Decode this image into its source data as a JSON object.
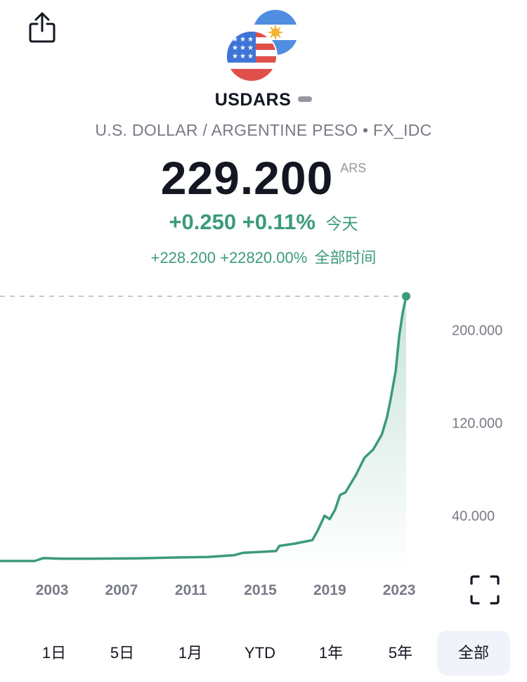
{
  "header": {
    "share_icon": "share-icon",
    "flags_icon": "usd-ars-flags-icon"
  },
  "symbol": {
    "ticker": "USDARS",
    "description": "U.S. DOLLAR / ARGENTINE PESO • FX_IDC",
    "price": "229.200",
    "currency": "ARS",
    "change_today": "+0.250",
    "change_today_pct": "+0.11%",
    "change_today_label": "今天",
    "change_all": "+228.200",
    "change_all_pct": "+22820.00%",
    "change_all_label": "全部时间"
  },
  "colors": {
    "line": "#3b9a7e",
    "positive": "#3b9a7e",
    "text": "#131722",
    "muted": "#787b86",
    "active_range_bg": "#f0f3fa"
  },
  "ranges": [
    "1日",
    "5日",
    "1月",
    "YTD",
    "1年",
    "5年",
    "全部"
  ],
  "active_range": "全部",
  "expand_icon": "expand-fullscreen-icon",
  "chart_data": {
    "type": "area",
    "title": "",
    "xlabel": "",
    "ylabel": "",
    "x_tick_labels": [
      "2003",
      "2007",
      "2011",
      "2015",
      "2019",
      "2023"
    ],
    "y_tick_labels": [
      "200.000",
      "120.000",
      "40.000"
    ],
    "y_ticks": [
      200,
      120,
      40
    ],
    "ylim": [
      -10,
      230
    ],
    "xlim": [
      2000.0,
      2023.4
    ],
    "last_value": 229.2,
    "grid": false,
    "series": [
      {
        "x": [
          2000.0,
          2002.0,
          2002.5,
          2003.5,
          2005.0,
          2008.0,
          2009.5,
          2012.0,
          2013.5,
          2014.0,
          2015.9,
          2016.1,
          2017.0,
          2018.0,
          2018.3,
          2018.7,
          2019.0,
          2019.3,
          2019.6,
          2019.9,
          2020.5,
          2021.0,
          2021.5,
          2022.0,
          2022.3,
          2022.5,
          2022.8,
          2023.0,
          2023.2,
          2023.4
        ],
        "y": [
          1.0,
          1.0,
          3.5,
          3.0,
          3.0,
          3.3,
          3.8,
          4.5,
          6.0,
          8.0,
          9.5,
          14.0,
          16.0,
          19.0,
          27.0,
          40.0,
          37.0,
          45.0,
          58.0,
          60.0,
          75.0,
          90.0,
          97.0,
          110.0,
          125.0,
          140.0,
          165.0,
          195.0,
          215.0,
          229.2
        ]
      }
    ]
  }
}
